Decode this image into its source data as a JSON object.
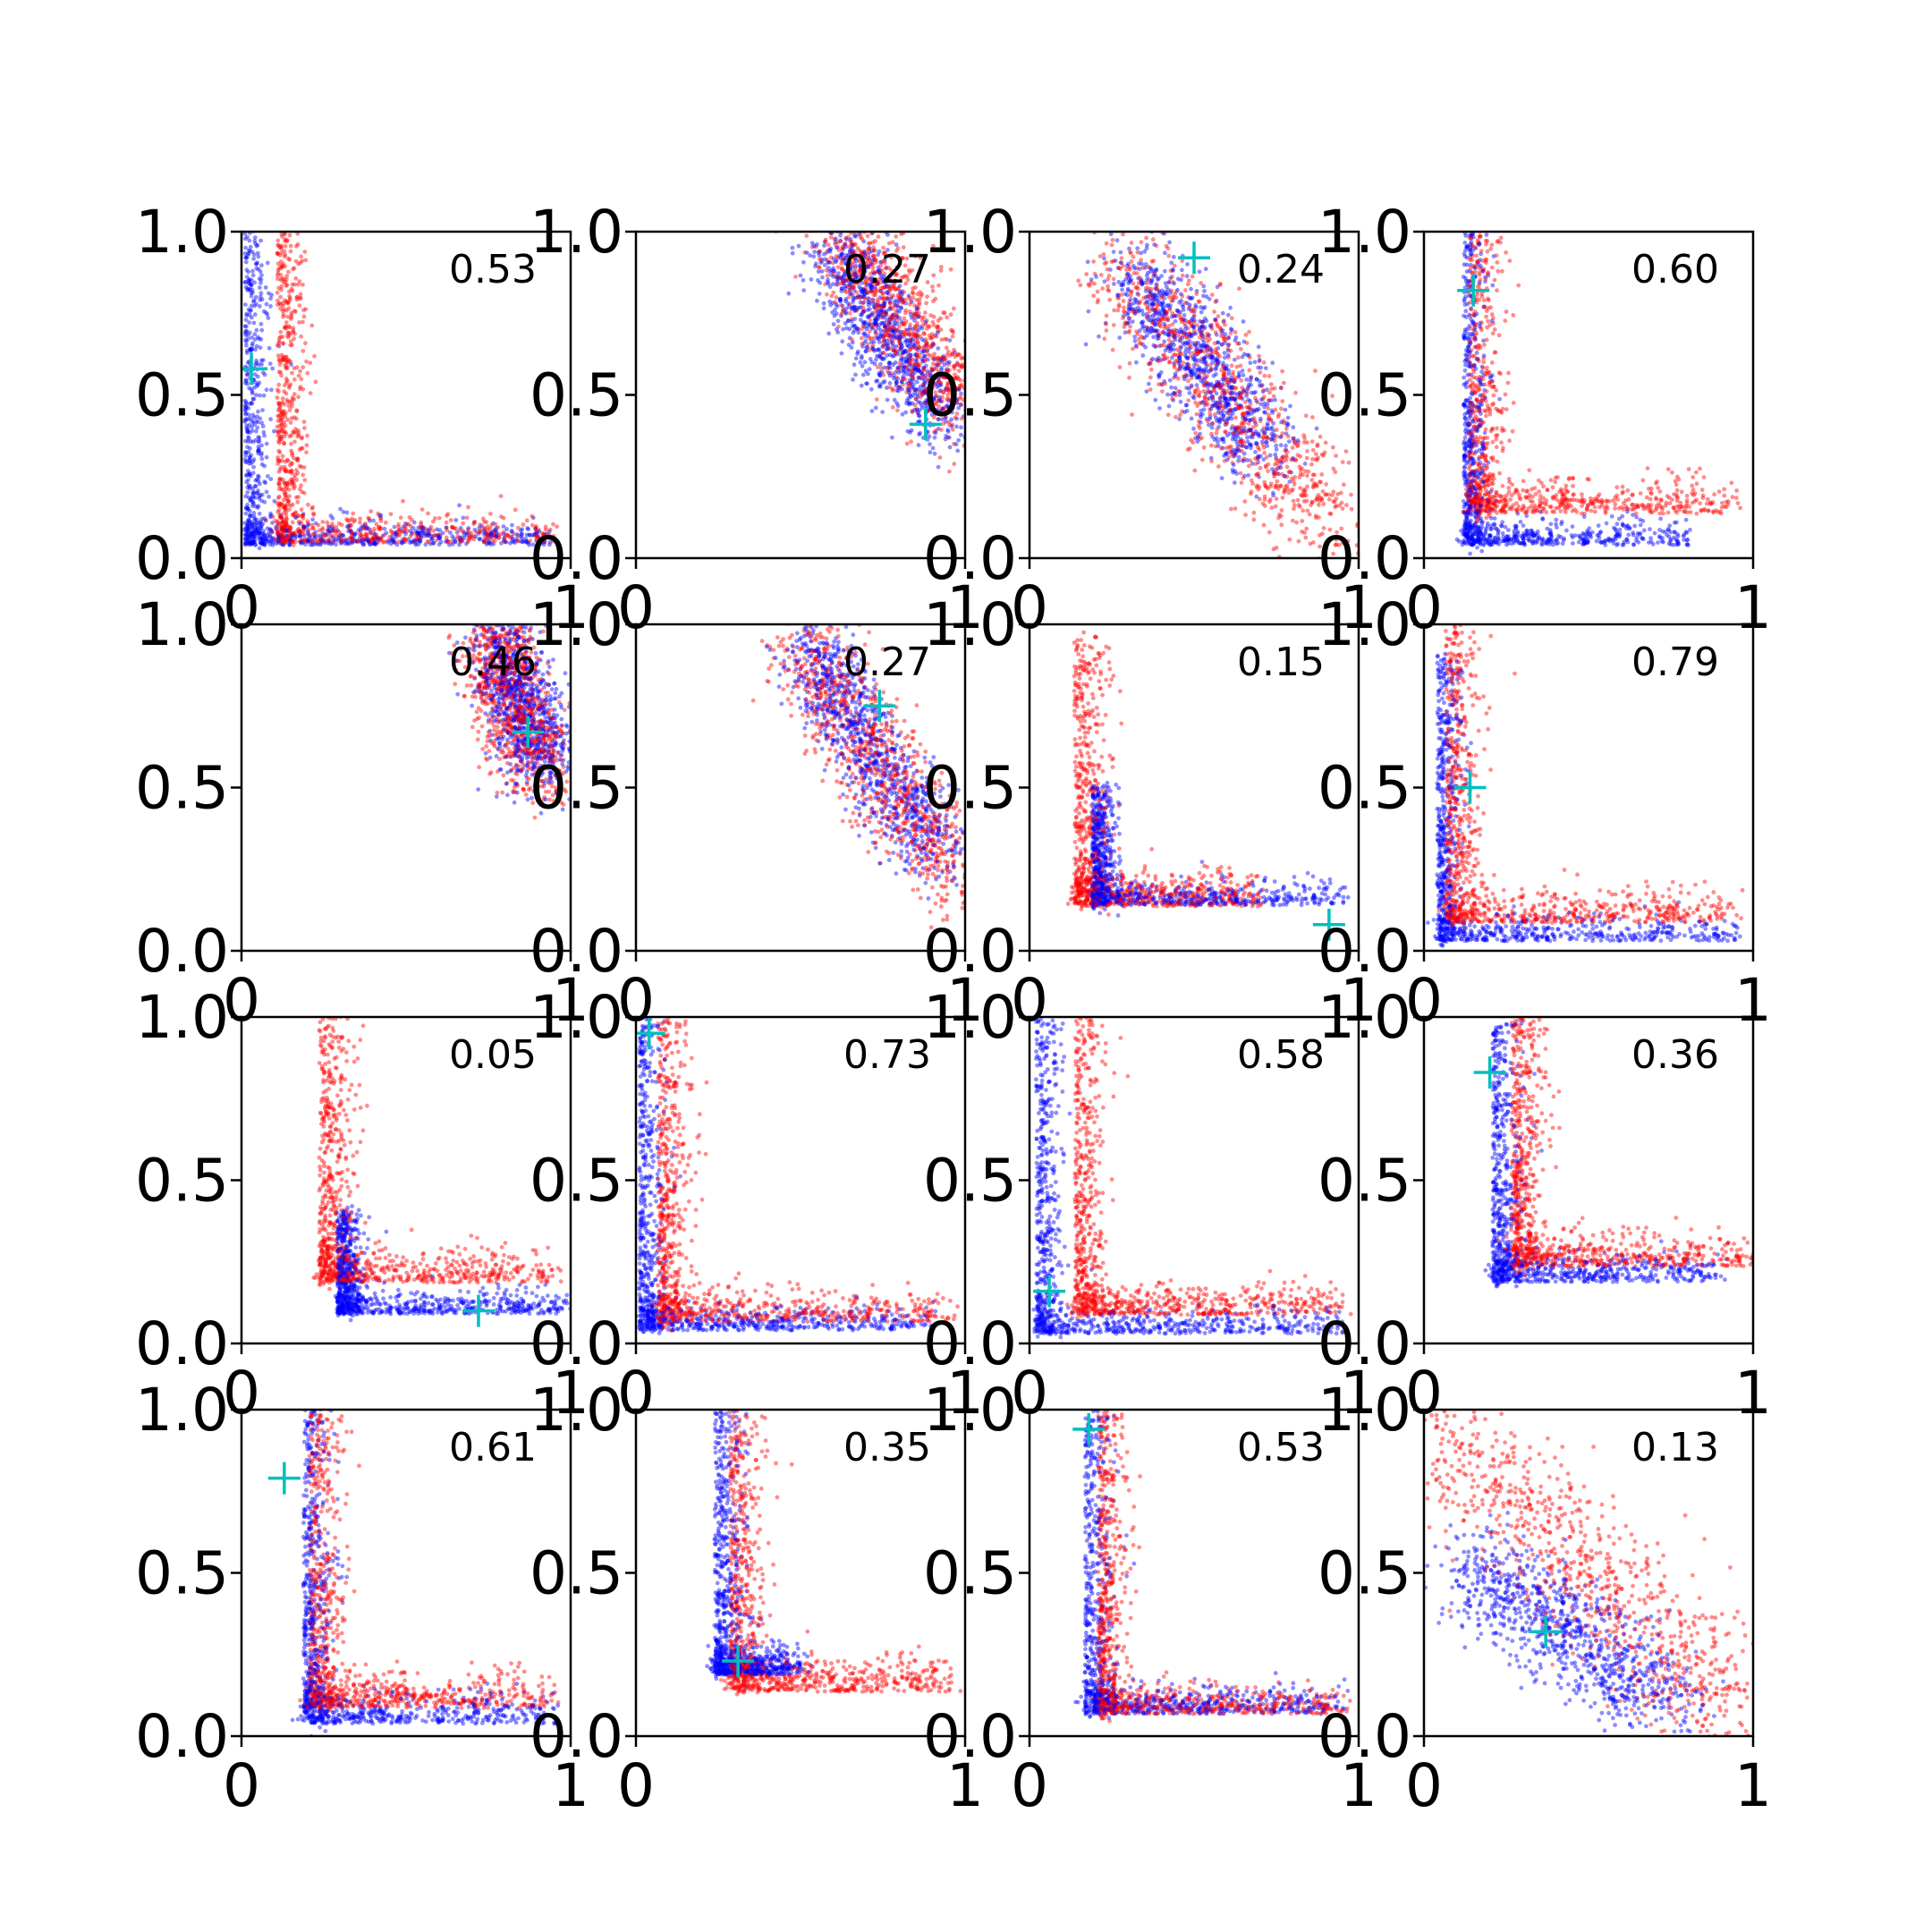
{
  "chart_data": {
    "type": "scatter",
    "layout": {
      "rows": 4,
      "cols": 4
    },
    "xlim": [
      0,
      1
    ],
    "ylim": [
      0,
      1
    ],
    "x_ticks": [
      "0",
      "1"
    ],
    "y_ticks": [
      "0.0",
      "0.5",
      "1.0"
    ],
    "colors": {
      "series_a": "#0000ff",
      "series_b": "#ff0000",
      "marker": "#00bfbf"
    },
    "panels": [
      {
        "annotation": "0.53",
        "marker": [
          0.03,
          0.58
        ],
        "blue": {
          "shape": "L",
          "corner": [
            0.02,
            0.05
          ],
          "ax": 0.95,
          "ay": 1.0,
          "w": 0.05
        },
        "red": {
          "shape": "L",
          "corner": [
            0.12,
            0.06
          ],
          "ax": 0.95,
          "ay": 1.0,
          "w": 0.06
        }
      },
      {
        "annotation": "0.27",
        "marker": [
          0.88,
          0.41
        ],
        "blue": {
          "shape": "line",
          "from": [
            0.6,
            0.95
          ],
          "to": [
            0.93,
            0.42
          ],
          "w": 0.06
        },
        "red": {
          "shape": "line",
          "from": [
            0.62,
            1.0
          ],
          "to": [
            1.0,
            0.45
          ],
          "w": 0.07
        }
      },
      {
        "annotation": "0.24",
        "marker": [
          0.5,
          0.92
        ],
        "blue": {
          "shape": "line",
          "from": [
            0.33,
            0.85
          ],
          "to": [
            0.72,
            0.32
          ],
          "w": 0.07
        },
        "red": {
          "shape": "line",
          "from": [
            0.3,
            0.9
          ],
          "to": [
            0.9,
            0.1
          ],
          "w": 0.08
        }
      },
      {
        "annotation": "0.60",
        "marker": [
          0.15,
          0.82
        ],
        "blue": {
          "shape": "L",
          "corner": [
            0.13,
            0.05
          ],
          "ax": 0.8,
          "ay": 1.0,
          "w": 0.05
        },
        "red": {
          "shape": "L",
          "corner": [
            0.15,
            0.15
          ],
          "ax": 0.95,
          "ay": 1.0,
          "w": 0.07
        }
      },
      {
        "annotation": "0.46",
        "marker": [
          0.87,
          0.67
        ],
        "blue": {
          "shape": "line",
          "from": [
            0.78,
            0.98
          ],
          "to": [
            0.92,
            0.55
          ],
          "w": 0.06
        },
        "red": {
          "shape": "line",
          "from": [
            0.76,
            0.98
          ],
          "to": [
            0.9,
            0.55
          ],
          "w": 0.06
        }
      },
      {
        "annotation": "0.27",
        "marker": [
          0.74,
          0.75
        ],
        "blue": {
          "shape": "line",
          "from": [
            0.52,
            0.95
          ],
          "to": [
            0.9,
            0.3
          ],
          "w": 0.06
        },
        "red": {
          "shape": "line",
          "from": [
            0.5,
            0.95
          ],
          "to": [
            0.98,
            0.2
          ],
          "w": 0.07
        }
      },
      {
        "annotation": "0.15",
        "marker": [
          0.91,
          0.08
        ],
        "blue": {
          "shape": "L",
          "corner": [
            0.2,
            0.15
          ],
          "ax": 0.95,
          "ay": 0.5,
          "w": 0.05
        },
        "red": {
          "shape": "L",
          "corner": [
            0.15,
            0.15
          ],
          "ax": 0.7,
          "ay": 0.95,
          "w": 0.07
        }
      },
      {
        "annotation": "0.79",
        "marker": [
          0.14,
          0.5
        ],
        "blue": {
          "shape": "L",
          "corner": [
            0.05,
            0.04
          ],
          "ax": 0.95,
          "ay": 0.9,
          "w": 0.05
        },
        "red": {
          "shape": "L",
          "corner": [
            0.08,
            0.1
          ],
          "ax": 0.95,
          "ay": 1.0,
          "w": 0.07
        }
      },
      {
        "annotation": "0.05",
        "marker": [
          0.72,
          0.1
        ],
        "blue": {
          "shape": "L",
          "corner": [
            0.3,
            0.1
          ],
          "ax": 1.0,
          "ay": 0.4,
          "w": 0.05
        },
        "red": {
          "shape": "L",
          "corner": [
            0.25,
            0.2
          ],
          "ax": 0.95,
          "ay": 1.0,
          "w": 0.07
        }
      },
      {
        "annotation": "0.73",
        "marker": [
          0.04,
          0.95
        ],
        "blue": {
          "shape": "L",
          "corner": [
            0.02,
            0.05
          ],
          "ax": 0.9,
          "ay": 1.0,
          "w": 0.05
        },
        "red": {
          "shape": "L",
          "corner": [
            0.08,
            0.08
          ],
          "ax": 0.95,
          "ay": 1.0,
          "w": 0.07
        }
      },
      {
        "annotation": "0.58",
        "marker": [
          0.06,
          0.16
        ],
        "blue": {
          "shape": "L",
          "corner": [
            0.03,
            0.04
          ],
          "ax": 0.95,
          "ay": 1.0,
          "w": 0.05
        },
        "red": {
          "shape": "L",
          "corner": [
            0.15,
            0.1
          ],
          "ax": 0.95,
          "ay": 1.0,
          "w": 0.06
        }
      },
      {
        "annotation": "0.36",
        "marker": [
          0.2,
          0.83
        ],
        "blue": {
          "shape": "L",
          "corner": [
            0.22,
            0.2
          ],
          "ax": 0.9,
          "ay": 1.0,
          "w": 0.06
        },
        "red": {
          "shape": "L",
          "corner": [
            0.28,
            0.25
          ],
          "ax": 1.0,
          "ay": 1.0,
          "w": 0.07
        }
      },
      {
        "annotation": "0.61",
        "marker": [
          0.13,
          0.79
        ],
        "blue": {
          "shape": "L",
          "corner": [
            0.2,
            0.05
          ],
          "ax": 0.95,
          "ay": 1.0,
          "w": 0.06
        },
        "red": {
          "shape": "L",
          "corner": [
            0.22,
            0.1
          ],
          "ax": 0.95,
          "ay": 1.0,
          "w": 0.07
        }
      },
      {
        "annotation": "0.35",
        "marker": [
          0.31,
          0.23
        ],
        "blue": {
          "shape": "L",
          "corner": [
            0.25,
            0.2
          ],
          "ax": 0.5,
          "ay": 1.0,
          "w": 0.06
        },
        "red": {
          "shape": "L",
          "corner": [
            0.3,
            0.15
          ],
          "ax": 0.95,
          "ay": 1.0,
          "w": 0.07
        }
      },
      {
        "annotation": "0.53",
        "marker": [
          0.18,
          0.94
        ],
        "blue": {
          "shape": "L",
          "corner": [
            0.18,
            0.08
          ],
          "ax": 0.95,
          "ay": 1.0,
          "w": 0.06
        },
        "red": {
          "shape": "L",
          "corner": [
            0.22,
            0.08
          ],
          "ax": 0.95,
          "ay": 1.0,
          "w": 0.06
        }
      },
      {
        "annotation": "0.13",
        "marker": [
          0.37,
          0.32
        ],
        "blue": {
          "shape": "line",
          "from": [
            0.15,
            0.5
          ],
          "to": [
            0.75,
            0.1
          ],
          "w": 0.08
        },
        "red": {
          "shape": "line",
          "from": [
            0.05,
            0.95
          ],
          "to": [
            0.95,
            0.05
          ],
          "w": 0.1
        }
      }
    ]
  }
}
